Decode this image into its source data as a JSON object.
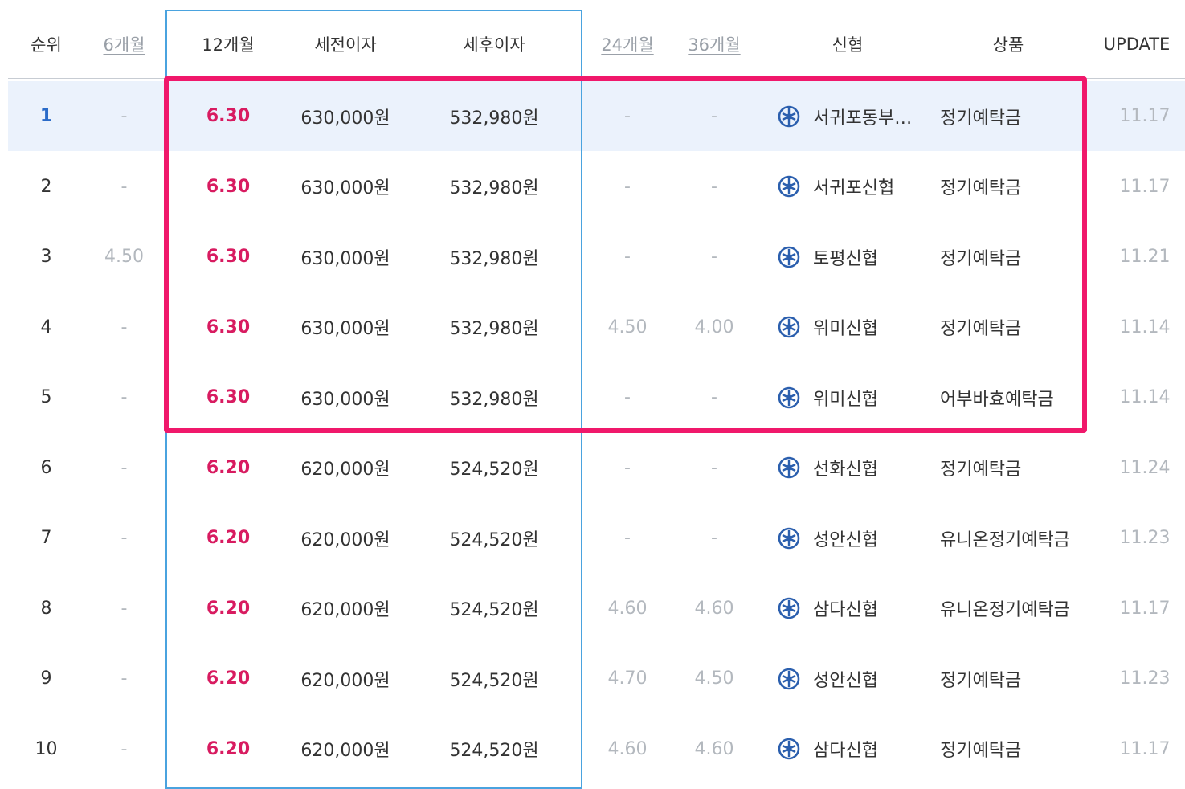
{
  "header": {
    "rank": "순위",
    "m6": "6개월",
    "m12": "12개월",
    "pretax": "세전이자",
    "posttax": "세후이자",
    "m24": "24개월",
    "m36": "36개월",
    "bank": "신협",
    "product": "상품",
    "update": "UPDATE"
  },
  "rows": [
    {
      "rank": "1",
      "m6": "-",
      "m12": "6.30",
      "pretax": "630,000원",
      "posttax": "532,980원",
      "m24": "-",
      "m36": "-",
      "bank": "서귀포동부…",
      "product": "정기예탁금",
      "update": "11.17"
    },
    {
      "rank": "2",
      "m6": "-",
      "m12": "6.30",
      "pretax": "630,000원",
      "posttax": "532,980원",
      "m24": "-",
      "m36": "-",
      "bank": "서귀포신협",
      "product": "정기예탁금",
      "update": "11.17"
    },
    {
      "rank": "3",
      "m6": "4.50",
      "m12": "6.30",
      "pretax": "630,000원",
      "posttax": "532,980원",
      "m24": "-",
      "m36": "-",
      "bank": "토평신협",
      "product": "정기예탁금",
      "update": "11.21"
    },
    {
      "rank": "4",
      "m6": "-",
      "m12": "6.30",
      "pretax": "630,000원",
      "posttax": "532,980원",
      "m24": "4.50",
      "m36": "4.00",
      "bank": "위미신협",
      "product": "정기예탁금",
      "update": "11.14"
    },
    {
      "rank": "5",
      "m6": "-",
      "m12": "6.30",
      "pretax": "630,000원",
      "posttax": "532,980원",
      "m24": "-",
      "m36": "-",
      "bank": "위미신협",
      "product": "어부바효예탁금",
      "update": "11.14"
    },
    {
      "rank": "6",
      "m6": "-",
      "m12": "6.20",
      "pretax": "620,000원",
      "posttax": "524,520원",
      "m24": "-",
      "m36": "-",
      "bank": "선화신협",
      "product": "정기예탁금",
      "update": "11.24"
    },
    {
      "rank": "7",
      "m6": "-",
      "m12": "6.20",
      "pretax": "620,000원",
      "posttax": "524,520원",
      "m24": "-",
      "m36": "-",
      "bank": "성안신협",
      "product": "유니온정기예탁금",
      "update": "11.23"
    },
    {
      "rank": "8",
      "m6": "-",
      "m12": "6.20",
      "pretax": "620,000원",
      "posttax": "524,520원",
      "m24": "4.60",
      "m36": "4.60",
      "bank": "삼다신협",
      "product": "유니온정기예탁금",
      "update": "11.17"
    },
    {
      "rank": "9",
      "m6": "-",
      "m12": "6.20",
      "pretax": "620,000원",
      "posttax": "524,520원",
      "m24": "4.70",
      "m36": "4.50",
      "bank": "성안신협",
      "product": "정기예탁금",
      "update": "11.23"
    },
    {
      "rank": "10",
      "m6": "-",
      "m12": "6.20",
      "pretax": "620,000원",
      "posttax": "524,520원",
      "m24": "4.60",
      "m36": "4.60",
      "bank": "삼다신협",
      "product": "정기예탁금",
      "update": "11.17"
    }
  ],
  "icon": "credit-union-logo-icon",
  "colors": {
    "rate": "#d81b60",
    "highlight_box": "#f0186b",
    "column_box": "#4aa3df",
    "row_highlight": "#ebf2fc"
  }
}
